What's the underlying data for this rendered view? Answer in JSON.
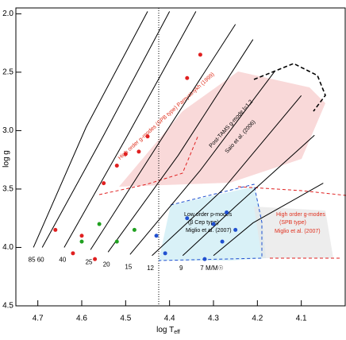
{
  "chart_data": {
    "type": "line",
    "xlabel": "log T",
    "xlabel_sub": "eff",
    "ylabel": "log g",
    "xlim": [
      4.75,
      4.0
    ],
    "ylim": [
      1.95,
      4.5
    ],
    "xticks": [
      4.7,
      4.6,
      4.5,
      4.4,
      4.3,
      4.2,
      4.1
    ],
    "yticks": [
      {
        "value": 2.0,
        "label": "2.0"
      },
      2.5,
      {
        "value": 3.0,
        "label": "3.0"
      },
      3.5,
      {
        "value": 4.0,
        "label": "4.0"
      },
      4.5
    ],
    "series": [
      {
        "name": "85",
        "color": "#000000",
        "x": [
          4.71,
          4.59,
          4.45
        ],
        "values": [
          4.0,
          2.97,
          1.98
        ]
      },
      {
        "name": "60",
        "color": "#000000",
        "x": [
          4.69,
          4.55,
          4.4
        ],
        "values": [
          4.0,
          3.04,
          1.98
        ]
      },
      {
        "name": "40",
        "color": "#000000",
        "x": [
          4.64,
          4.5,
          4.34
        ],
        "values": [
          4.0,
          3.07,
          1.98
        ]
      },
      {
        "name": "25",
        "color": "#000000",
        "x": [
          4.58,
          4.43,
          4.25
        ],
        "values": [
          4.02,
          3.14,
          2.09
        ]
      },
      {
        "name": "20",
        "color": "#000000",
        "x": [
          4.54,
          4.38,
          4.21
        ],
        "values": [
          4.04,
          3.21,
          2.22
        ]
      },
      {
        "name": "15",
        "color": "#000000",
        "x": [
          4.49,
          4.33,
          4.16
        ],
        "values": [
          4.06,
          3.34,
          2.49
        ]
      },
      {
        "name": "12",
        "color": "#000000",
        "x": [
          4.44,
          4.28,
          4.1
        ],
        "values": [
          4.07,
          3.51,
          2.7
        ]
      },
      {
        "name": "9",
        "color": "#000000",
        "x": [
          4.37,
          4.25,
          4.07
        ],
        "values": [
          4.07,
          3.65,
          3.04
        ]
      },
      {
        "name": "7 M/M☉",
        "color": "#000000",
        "x": [
          4.3,
          4.21,
          4.05
        ],
        "values": [
          4.07,
          3.79,
          3.45
        ]
      }
    ],
    "stars": [
      {
        "color": "#e02020",
        "x": [
          4.66,
          4.6,
          4.55,
          4.52,
          4.5,
          4.47,
          4.45,
          4.36,
          4.33,
          4.62,
          4.57
        ],
        "values": [
          3.85,
          3.9,
          3.45,
          3.3,
          3.2,
          3.18,
          3.05,
          2.55,
          2.35,
          4.05,
          4.1
        ]
      },
      {
        "color": "#20a020",
        "x": [
          4.6,
          4.56,
          4.52,
          4.48
        ],
        "values": [
          3.95,
          3.8,
          3.95,
          3.85
        ]
      },
      {
        "color": "#2050d0",
        "x": [
          4.43,
          4.41,
          4.36,
          4.32,
          4.3,
          4.28,
          4.27,
          4.25
        ],
        "values": [
          3.9,
          4.05,
          3.75,
          4.1,
          3.8,
          3.95,
          3.7,
          3.85
        ]
      }
    ],
    "annotations": [
      "High order g-modes (SPB type) Pamyatnykh (1999)",
      "Post-TAMS g-mode l=1,2",
      "Saio et al. (2006)",
      "Low order p-modes",
      "(β Cep type)",
      "Miglio et al. (2007)",
      "High order g-modes",
      "(SPB type)",
      "Miglio et al. (2007)"
    ]
  }
}
